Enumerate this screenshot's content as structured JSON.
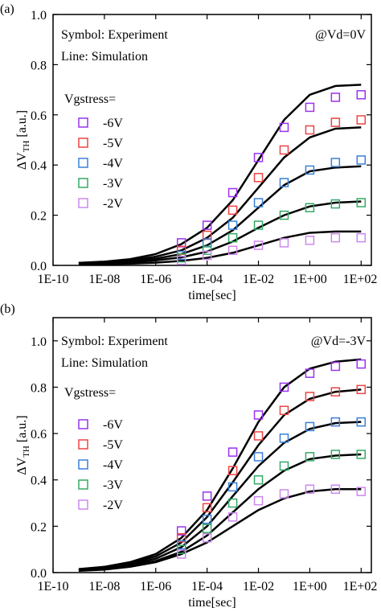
{
  "chart_data": [
    {
      "type": "line",
      "panel_label": "(a)",
      "annotations": [
        "Symbol: Experiment",
        "Line: Simulation",
        "@Vd=0V"
      ],
      "legend_title": "Vgstress=",
      "x_label": "time[sec]",
      "y_label": "ΔV",
      "y_label_sub": "TH",
      "y_label_unit": " [a.u.]",
      "log_x": true,
      "xlim": [
        1e-10,
        250
      ],
      "xticks": [
        {
          "value": 1e-10,
          "label": "1E-10"
        },
        {
          "value": 1e-08,
          "label": "1E-08"
        },
        {
          "value": 1e-06,
          "label": "1E-06"
        },
        {
          "value": 0.0001,
          "label": "1E-04"
        },
        {
          "value": 0.01,
          "label": "1E-02"
        },
        {
          "value": 1,
          "label": "1E+00"
        },
        {
          "value": 100,
          "label": "1E+02"
        }
      ],
      "ylim": [
        0,
        1
      ],
      "yticks": [
        {
          "value": 0,
          "label": "0.0"
        },
        0.2,
        0.4,
        0.6,
        0.8,
        {
          "value": 1,
          "label": "1.0"
        }
      ],
      "x": [
        1e-09,
        1e-08,
        1e-07,
        1e-06,
        1e-05,
        0.0001,
        0.001,
        0.01,
        0.1,
        1,
        10,
        100
      ],
      "series": [
        {
          "name": "-6V",
          "color": "#9933ee",
          "values": [
            null,
            null,
            null,
            null,
            0.09,
            0.16,
            0.29,
            0.43,
            0.55,
            0.63,
            0.67,
            0.68
          ]
        },
        {
          "name": "-5V",
          "color": "#ee4444",
          "values": [
            null,
            null,
            null,
            null,
            0.06,
            0.12,
            0.22,
            0.35,
            0.46,
            0.54,
            0.57,
            0.58
          ]
        },
        {
          "name": "-4V",
          "color": "#3a80d8",
          "values": [
            null,
            null,
            null,
            null,
            0.04,
            0.09,
            0.16,
            0.25,
            0.33,
            0.38,
            0.41,
            0.42
          ]
        },
        {
          "name": "-3V",
          "color": "#33aa66",
          "values": [
            null,
            null,
            null,
            null,
            0.03,
            0.06,
            0.11,
            0.16,
            0.2,
            0.23,
            0.245,
            0.25
          ]
        },
        {
          "name": "-2V",
          "color": "#cc88ee",
          "values": [
            null,
            null,
            null,
            null,
            0.02,
            0.04,
            0.06,
            0.08,
            0.09,
            0.1,
            0.11,
            0.11
          ]
        }
      ],
      "simulation": {
        "color": "#000000",
        "lines": [
          [
            0.01,
            0.015,
            0.025,
            0.045,
            0.085,
            0.15,
            0.26,
            0.42,
            0.58,
            0.68,
            0.715,
            0.72
          ],
          [
            0.01,
            0.013,
            0.02,
            0.035,
            0.06,
            0.11,
            0.19,
            0.31,
            0.43,
            0.51,
            0.545,
            0.55
          ],
          [
            0.008,
            0.01,
            0.016,
            0.027,
            0.045,
            0.08,
            0.14,
            0.23,
            0.32,
            0.375,
            0.39,
            0.395
          ],
          [
            0.006,
            0.008,
            0.012,
            0.02,
            0.032,
            0.055,
            0.095,
            0.15,
            0.2,
            0.235,
            0.25,
            0.255
          ],
          [
            0.004,
            0.005,
            0.007,
            0.011,
            0.018,
            0.03,
            0.05,
            0.08,
            0.11,
            0.13,
            0.135,
            0.135
          ]
        ]
      }
    },
    {
      "type": "line",
      "panel_label": "(b)",
      "annotations": [
        "Symbol: Experiment",
        "Line: Simulation",
        "@Vd=-3V"
      ],
      "legend_title": "Vgstress=",
      "x_label": "time[sec]",
      "y_label": "ΔV",
      "y_label_sub": "TH",
      "y_label_unit": " [a.u.]",
      "log_x": true,
      "xlim": [
        1e-10,
        250
      ],
      "xticks": [
        {
          "value": 1e-10,
          "label": "1E-10"
        },
        {
          "value": 1e-08,
          "label": "1E-08"
        },
        {
          "value": 1e-06,
          "label": "1E-06"
        },
        {
          "value": 0.0001,
          "label": "1E-04"
        },
        {
          "value": 0.01,
          "label": "1E-02"
        },
        {
          "value": 1,
          "label": "1E+00"
        },
        {
          "value": 100,
          "label": "1E+02"
        }
      ],
      "ylim": [
        0,
        1.1
      ],
      "yticks": [
        {
          "value": 0,
          "label": "0.0"
        },
        0.2,
        0.4,
        0.6,
        0.8,
        {
          "value": 1,
          "label": "1.0"
        }
      ],
      "x": [
        1e-09,
        1e-08,
        1e-07,
        1e-06,
        1e-05,
        0.0001,
        0.001,
        0.01,
        0.1,
        1,
        10,
        100
      ],
      "series": [
        {
          "name": "-6V",
          "color": "#9933ee",
          "values": [
            null,
            null,
            null,
            null,
            0.18,
            0.33,
            0.52,
            0.68,
            0.8,
            0.86,
            0.89,
            0.9
          ]
        },
        {
          "name": "-5V",
          "color": "#ee4444",
          "values": [
            null,
            null,
            null,
            null,
            0.15,
            0.28,
            0.44,
            0.59,
            0.7,
            0.76,
            0.78,
            0.79
          ]
        },
        {
          "name": "-4V",
          "color": "#3a80d8",
          "values": [
            null,
            null,
            null,
            null,
            0.12,
            0.23,
            0.37,
            0.5,
            0.58,
            0.63,
            0.65,
            0.65
          ]
        },
        {
          "name": "-3V",
          "color": "#33aa66",
          "values": [
            null,
            null,
            null,
            null,
            0.1,
            0.19,
            0.3,
            0.4,
            0.46,
            0.5,
            0.51,
            0.51
          ]
        },
        {
          "name": "-2V",
          "color": "#cc88ee",
          "values": [
            null,
            null,
            null,
            null,
            0.08,
            0.15,
            0.24,
            0.31,
            0.34,
            0.36,
            0.36,
            0.35
          ]
        }
      ],
      "simulation": {
        "color": "#000000",
        "lines": [
          [
            0.015,
            0.025,
            0.045,
            0.08,
            0.15,
            0.27,
            0.45,
            0.65,
            0.8,
            0.88,
            0.91,
            0.92
          ],
          [
            0.012,
            0.02,
            0.04,
            0.07,
            0.13,
            0.24,
            0.39,
            0.55,
            0.68,
            0.75,
            0.78,
            0.79
          ],
          [
            0.01,
            0.018,
            0.035,
            0.06,
            0.11,
            0.2,
            0.33,
            0.46,
            0.56,
            0.62,
            0.645,
            0.65
          ],
          [
            0.009,
            0.015,
            0.03,
            0.05,
            0.09,
            0.16,
            0.26,
            0.36,
            0.44,
            0.49,
            0.505,
            0.51
          ],
          [
            0.008,
            0.013,
            0.025,
            0.045,
            0.08,
            0.13,
            0.2,
            0.27,
            0.32,
            0.35,
            0.36,
            0.36
          ]
        ]
      }
    }
  ]
}
